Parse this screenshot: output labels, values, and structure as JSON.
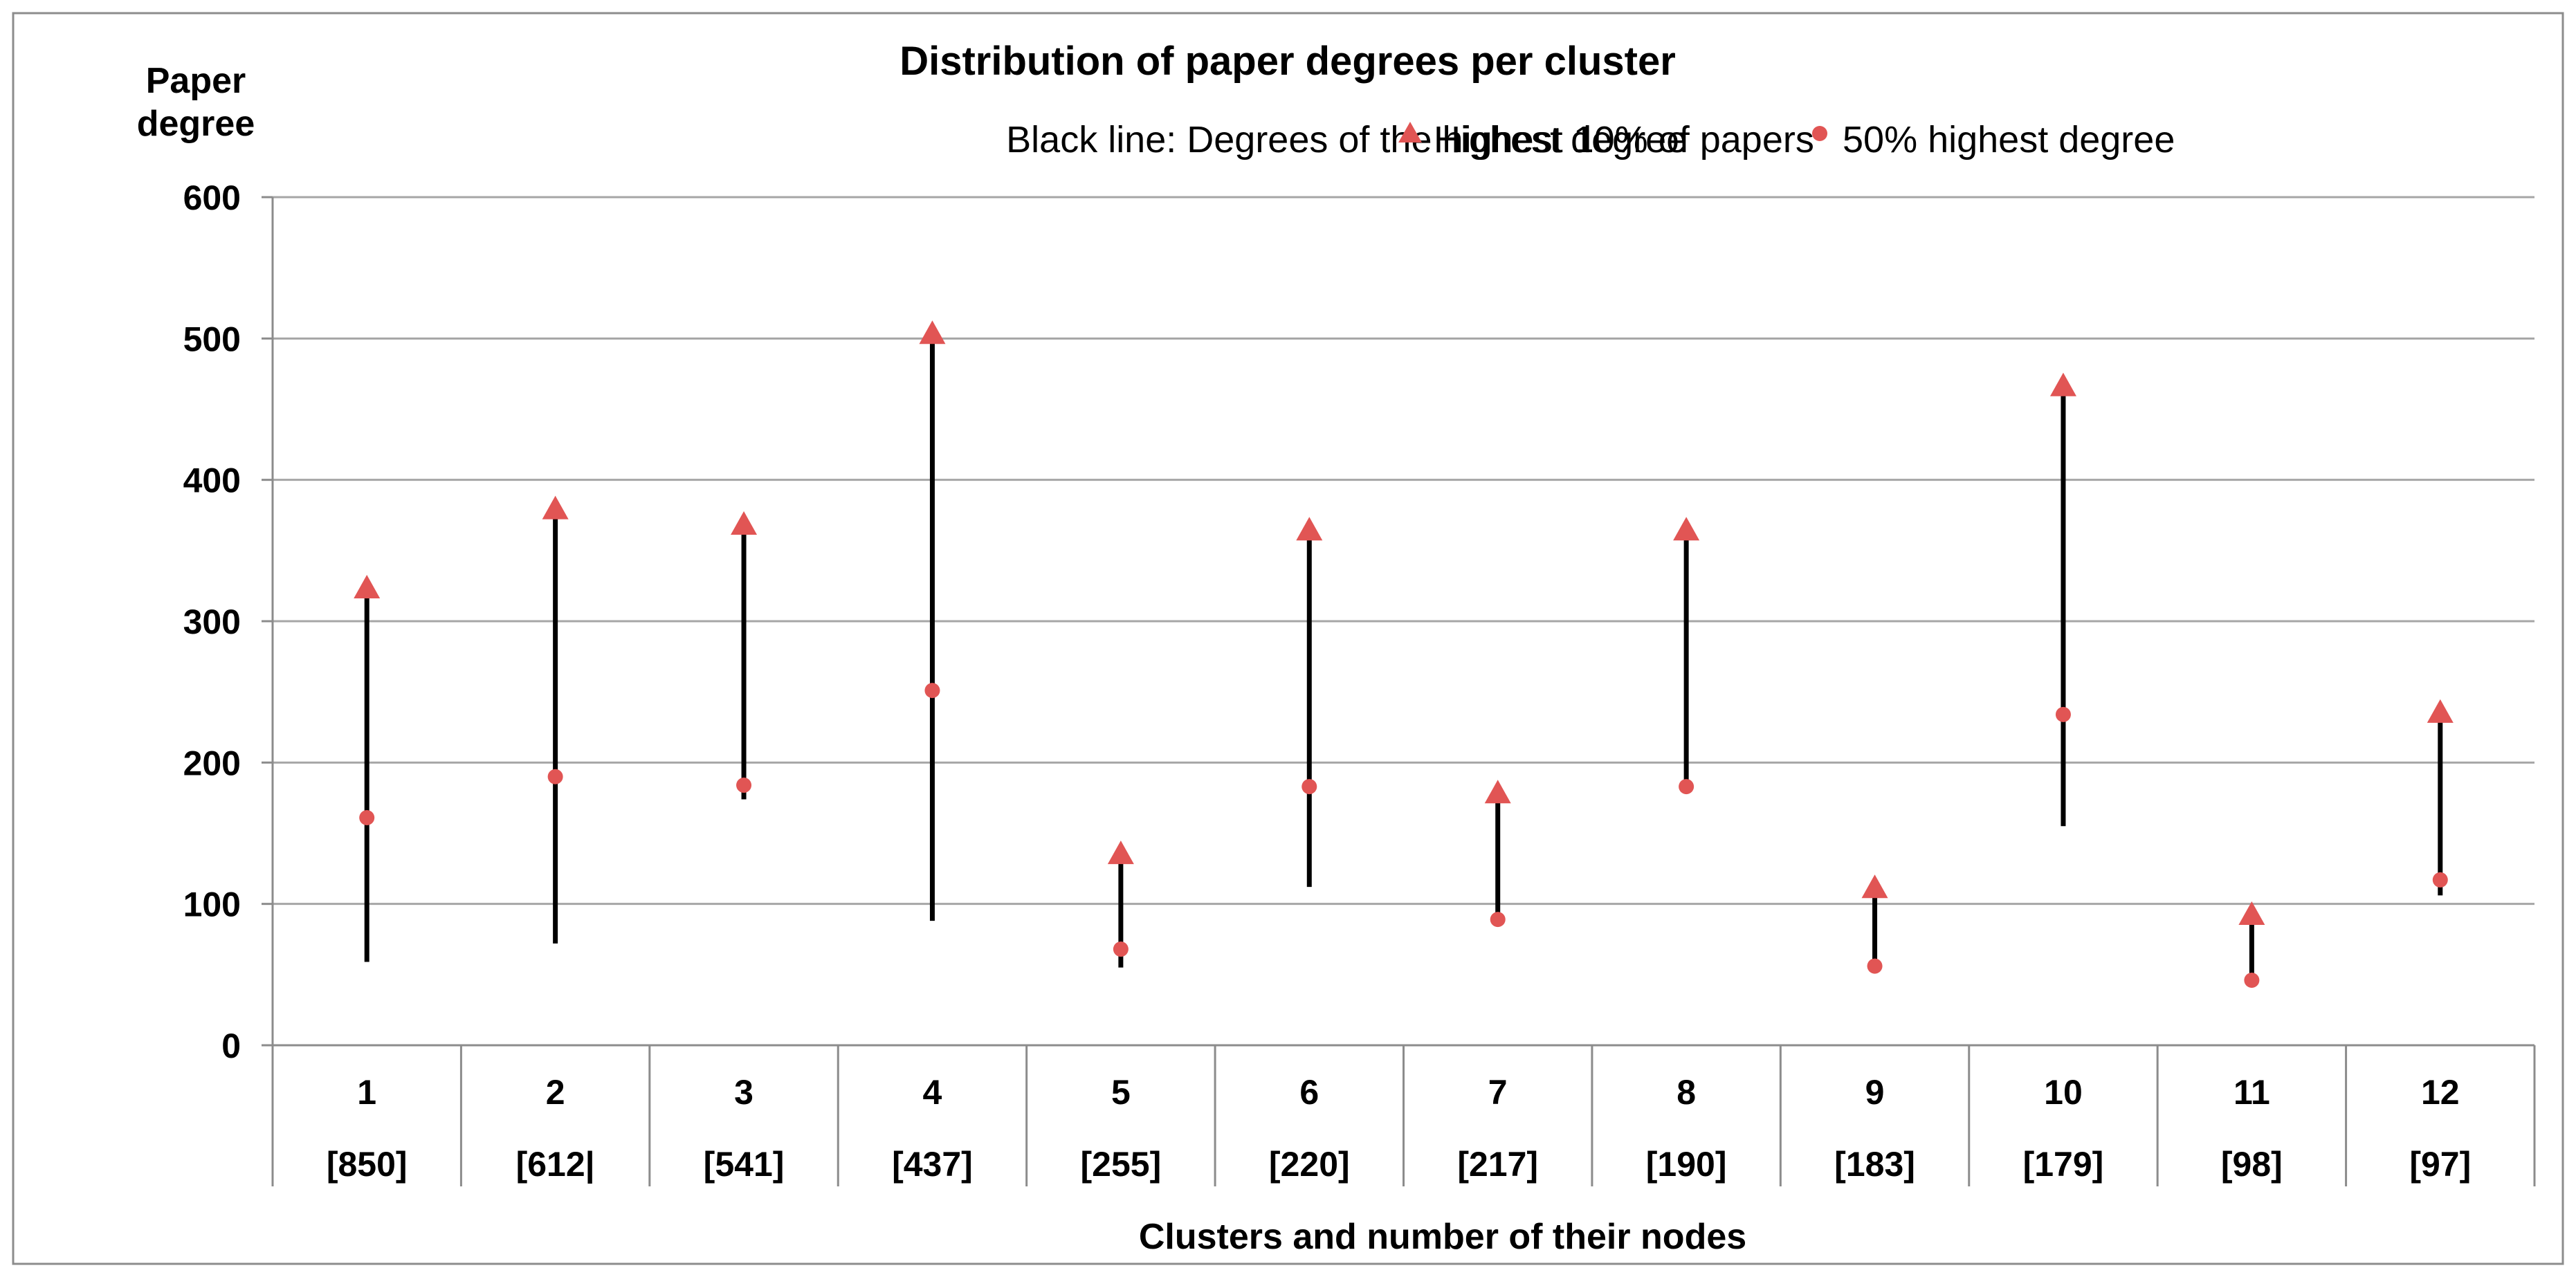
{
  "chart_data": {
    "type": "range",
    "title": "Distribution of paper degrees per cluster",
    "ylabel": "Paper degree",
    "xlabel": "Clusters and number of their nodes",
    "legend": {
      "line_label": "Black line: Degrees of the highest 10% of papers",
      "highest_label": "Highest degree",
      "median_label": "50% highest degree"
    },
    "ylim": [
      0,
      600
    ],
    "yticks": [
      0,
      100,
      200,
      300,
      400,
      500,
      600
    ],
    "grid": true,
    "categories": [
      "1",
      "2",
      "3",
      "4",
      "5",
      "6",
      "7",
      "8",
      "9",
      "10",
      "11",
      "12"
    ],
    "nodes": [
      "[850]",
      "[612|",
      "[541]",
      "[437]",
      "[255]",
      "[220]",
      "[217]",
      "[190]",
      "[183]",
      "[179]",
      "[98]",
      "[97]"
    ],
    "series": [
      {
        "name": "Highest degree",
        "values": [
          323,
          379,
          368,
          503,
          135,
          364,
          178,
          364,
          111,
          466,
          92,
          235
        ]
      },
      {
        "name": "50% highest degree",
        "values": [
          161,
          190,
          184,
          251,
          68,
          183,
          89,
          183,
          56,
          234,
          46,
          117
        ]
      },
      {
        "name": "Black line low",
        "values": [
          59,
          72,
          174,
          88,
          55,
          112,
          84,
          183,
          52,
          155,
          44,
          106
        ]
      }
    ],
    "colors": {
      "marker": "#e15554",
      "line": "#000000",
      "grid": "#a6a6a6",
      "frame": "#8c8c8c"
    }
  }
}
